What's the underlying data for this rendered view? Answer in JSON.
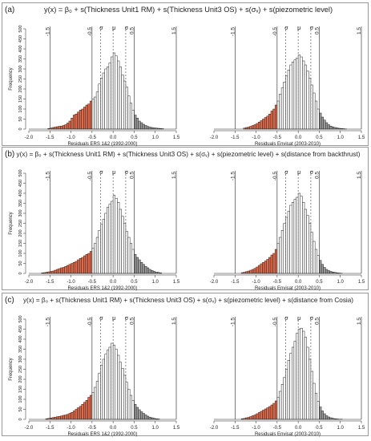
{
  "figure": {
    "panels": [
      {
        "label": "(a)",
        "equation": "y(x) = β₀ + s(Thickness Unit1 RM) + s(Thickness Unit3 OS) + s(σᵥ) + s(piezometric level)"
      },
      {
        "label": "(b)",
        "equation": "y(x) = β₀ + s(Thickness Unit1 RM) + s(Thickness Unit3 OS) + s(σᵥ) + s(piezometric level) + s(distance from backthrust)"
      },
      {
        "label": "(c)",
        "equation": "y(x) = β₀ + s(Thickness Unit1 RM) + s(Thickness Unit3 OS) + s(σᵥ) + s(piezometric level) + s(distance from Cosia)"
      }
    ]
  },
  "colors": {
    "lower_tail": "#e0694a",
    "upper_tail": "#9a9a9a",
    "body": "#ffffff",
    "panel_border": "#999999"
  },
  "chart_data": [
    {
      "type": "bar",
      "panel": "(a)",
      "xlabel": "Residuals ERS 1&2 (1992-2000)",
      "ylabel": "Frequency",
      "xlim": [
        -2.0,
        1.5
      ],
      "ylim": [
        0,
        500
      ],
      "xticks": [
        "-2.0",
        "-1.5",
        "-1.0",
        "-0.5",
        "0.0",
        "0.5",
        "1.0",
        "1.5"
      ],
      "yticks": [
        "0",
        "50",
        "100",
        "150",
        "200",
        "250",
        "300",
        "350",
        "400",
        "450",
        "500"
      ],
      "bin_width": 0.05,
      "bin_start": [
        -1.55,
        -1.5,
        -1.45,
        -1.4,
        -1.35,
        -1.3,
        -1.25,
        -1.2,
        -1.15,
        -1.1,
        -1.05,
        -1.0,
        -0.95,
        -0.9,
        -0.85,
        -0.8,
        -0.75,
        -0.7,
        -0.65,
        -0.6,
        -0.55,
        -0.5,
        -0.45,
        -0.4,
        -0.35,
        -0.3,
        -0.25,
        -0.2,
        -0.15,
        -0.1,
        -0.05,
        0.0,
        0.05,
        0.1,
        0.15,
        0.2,
        0.25,
        0.3,
        0.35,
        0.4,
        0.45,
        0.5,
        0.55,
        0.6,
        0.65,
        0.7,
        0.75,
        0.8,
        0.85,
        0.9,
        0.95,
        1.0,
        1.05,
        1.1,
        1.15
      ],
      "counts": [
        3,
        5,
        8,
        10,
        12,
        14,
        15,
        18,
        22,
        30,
        40,
        55,
        70,
        75,
        85,
        95,
        100,
        110,
        120,
        125,
        140,
        150,
        160,
        185,
        225,
        255,
        280,
        300,
        310,
        330,
        360,
        380,
        365,
        340,
        310,
        270,
        240,
        210,
        165,
        130,
        95,
        70,
        55,
        40,
        32,
        24,
        18,
        13,
        10,
        8,
        6,
        5,
        4,
        3,
        2
      ],
      "vertical_lines": {
        "solid": [
          -1.5,
          -0.5,
          0.5,
          1.5
        ],
        "dashed": [
          -0.3,
          0.0,
          0.3
        ]
      },
      "line_labels": {
        "-1.5": "-1.5",
        "-0.5": "-0.5",
        "-0.3": "σ",
        "0.0": "μ",
        "0.3": "σ",
        "0.5": "0.5",
        "1.5": "1.5"
      },
      "lower_tail_max": -0.5,
      "upper_tail_min": 0.5
    },
    {
      "type": "bar",
      "panel": "(a)",
      "xlabel": "Residuals Envisat (2003-2010)",
      "ylabel": "",
      "xlim": [
        -2.0,
        1.5
      ],
      "ylim": [
        0,
        500
      ],
      "xticks": [
        "-2.0",
        "-1.5",
        "-1.0",
        "-0.5",
        "0.0",
        "0.5",
        "1.0",
        "1.5"
      ],
      "yticks": [],
      "bin_width": 0.05,
      "bin_start": [
        -1.3,
        -1.25,
        -1.2,
        -1.15,
        -1.1,
        -1.05,
        -1.0,
        -0.95,
        -0.9,
        -0.85,
        -0.8,
        -0.75,
        -0.7,
        -0.65,
        -0.6,
        -0.55,
        -0.5,
        -0.45,
        -0.4,
        -0.35,
        -0.3,
        -0.25,
        -0.2,
        -0.15,
        -0.1,
        -0.05,
        0.0,
        0.05,
        0.1,
        0.15,
        0.2,
        0.25,
        0.3,
        0.35,
        0.4,
        0.45,
        0.5,
        0.55,
        0.6,
        0.65,
        0.7,
        0.75,
        0.8,
        0.85,
        0.9,
        0.95,
        1.0,
        1.05,
        1.1
      ],
      "counts": [
        5,
        8,
        10,
        14,
        18,
        22,
        28,
        35,
        42,
        50,
        58,
        65,
        75,
        90,
        100,
        120,
        140,
        175,
        205,
        235,
        265,
        295,
        320,
        335,
        345,
        355,
        370,
        360,
        340,
        320,
        290,
        255,
        220,
        180,
        140,
        100,
        80,
        60,
        45,
        32,
        22,
        15,
        11,
        8,
        6,
        4,
        3,
        2,
        1
      ],
      "vertical_lines": {
        "solid": [
          -1.5,
          -0.5,
          0.5,
          1.5
        ],
        "dashed": [
          -0.3,
          0.0,
          0.3
        ]
      },
      "line_labels": {
        "-1.5": "-1.5",
        "-0.5": "-0.5",
        "-0.3": "σ",
        "0.0": "μ",
        "0.3": "σ",
        "0.5": "0.5",
        "1.5": "1.5"
      },
      "lower_tail_max": -0.5,
      "upper_tail_min": 0.5
    },
    {
      "type": "bar",
      "panel": "(b)",
      "xlabel": "Residuals ERS 1&2 (1992-2000)",
      "ylabel": "Frequency",
      "xlim": [
        -2.0,
        1.5
      ],
      "ylim": [
        0,
        500
      ],
      "xticks": [
        "-2.0",
        "-1.5",
        "-1.0",
        "-0.5",
        "0.0",
        "0.5",
        "1.0",
        "1.5"
      ],
      "yticks": [
        "0",
        "50",
        "100",
        "150",
        "200",
        "250",
        "300",
        "350",
        "400",
        "450",
        "500"
      ],
      "bin_width": 0.05,
      "bin_start": [
        -1.7,
        -1.65,
        -1.6,
        -1.55,
        -1.5,
        -1.45,
        -1.4,
        -1.35,
        -1.3,
        -1.25,
        -1.2,
        -1.15,
        -1.1,
        -1.05,
        -1.0,
        -0.95,
        -0.9,
        -0.85,
        -0.8,
        -0.75,
        -0.7,
        -0.65,
        -0.6,
        -0.55,
        -0.5,
        -0.45,
        -0.4,
        -0.35,
        -0.3,
        -0.25,
        -0.2,
        -0.15,
        -0.1,
        -0.05,
        0.0,
        0.05,
        0.1,
        0.15,
        0.2,
        0.25,
        0.3,
        0.35,
        0.4,
        0.45,
        0.5,
        0.55,
        0.6,
        0.65,
        0.7,
        0.75,
        0.8,
        0.85,
        0.9,
        0.95,
        1.0,
        1.05,
        1.1
      ],
      "counts": [
        3,
        4,
        6,
        8,
        10,
        12,
        16,
        20,
        24,
        28,
        30,
        35,
        40,
        45,
        50,
        55,
        60,
        68,
        75,
        80,
        88,
        95,
        100,
        110,
        125,
        150,
        180,
        215,
        245,
        270,
        300,
        330,
        345,
        360,
        390,
        375,
        355,
        320,
        285,
        250,
        210,
        180,
        150,
        120,
        95,
        80,
        68,
        55,
        45,
        35,
        28,
        20,
        15,
        10,
        7,
        5,
        3
      ],
      "vertical_lines": {
        "solid": [
          -1.5,
          -0.5,
          0.5,
          1.5
        ],
        "dashed": [
          -0.3,
          0.0,
          0.3
        ]
      },
      "line_labels": {
        "-1.5": "-1.5",
        "-0.5": "-0.5",
        "-0.3": "σ",
        "0.0": "μ",
        "0.3": "σ",
        "0.5": "0.5",
        "1.5": "1.5"
      },
      "lower_tail_max": -0.5,
      "upper_tail_min": 0.5
    },
    {
      "type": "bar",
      "panel": "(b)",
      "xlabel": "Residuals Envisat (2003-2010)",
      "ylabel": "",
      "xlim": [
        -2.0,
        1.5
      ],
      "ylim": [
        0,
        500
      ],
      "xticks": [
        "-2.0",
        "-1.5",
        "-1.0",
        "-0.5",
        "0.0",
        "0.5",
        "1.0",
        "1.5"
      ],
      "yticks": [],
      "bin_width": 0.05,
      "bin_start": [
        -1.35,
        -1.3,
        -1.25,
        -1.2,
        -1.15,
        -1.1,
        -1.05,
        -1.0,
        -0.95,
        -0.9,
        -0.85,
        -0.8,
        -0.75,
        -0.7,
        -0.65,
        -0.6,
        -0.55,
        -0.5,
        -0.45,
        -0.4,
        -0.35,
        -0.3,
        -0.25,
        -0.2,
        -0.15,
        -0.1,
        -0.05,
        0.0,
        0.05,
        0.1,
        0.15,
        0.2,
        0.25,
        0.3,
        0.35,
        0.4,
        0.45,
        0.5,
        0.55,
        0.6,
        0.65,
        0.7,
        0.75,
        0.8,
        0.85,
        0.9,
        0.95,
        1.0
      ],
      "counts": [
        4,
        6,
        9,
        12,
        16,
        20,
        25,
        32,
        40,
        48,
        55,
        62,
        70,
        80,
        92,
        100,
        120,
        150,
        180,
        215,
        250,
        280,
        310,
        340,
        355,
        370,
        380,
        400,
        385,
        355,
        320,
        290,
        250,
        205,
        160,
        120,
        90,
        65,
        45,
        30,
        20,
        14,
        10,
        7,
        5,
        3,
        2,
        1
      ],
      "vertical_lines": {
        "solid": [
          -1.5,
          -0.5,
          0.5,
          1.5
        ],
        "dashed": [
          -0.3,
          0.0,
          0.3
        ]
      },
      "line_labels": {
        "-1.5": "-1.5",
        "-0.5": "-0.5",
        "-0.3": "σ",
        "0.0": "μ",
        "0.3": "σ",
        "0.5": "0.5",
        "1.5": "1.5"
      },
      "lower_tail_max": -0.5,
      "upper_tail_min": 0.5
    },
    {
      "type": "bar",
      "panel": "(c)",
      "xlabel": "Residuals ERS 1&2 (1992-2000)",
      "ylabel": "Frequency",
      "xlim": [
        -2.0,
        1.5
      ],
      "ylim": [
        0,
        500
      ],
      "xticks": [
        "-2.0",
        "-1.5",
        "-1.0",
        "-0.5",
        "0.0",
        "0.5",
        "1.0",
        "1.5"
      ],
      "yticks": [
        "0",
        "50",
        "100",
        "150",
        "200",
        "250",
        "300",
        "350",
        "400",
        "450",
        "500"
      ],
      "bin_width": 0.05,
      "bin_start": [
        -1.6,
        -1.55,
        -1.5,
        -1.45,
        -1.4,
        -1.35,
        -1.3,
        -1.25,
        -1.2,
        -1.15,
        -1.1,
        -1.05,
        -1.0,
        -0.95,
        -0.9,
        -0.85,
        -0.8,
        -0.75,
        -0.7,
        -0.65,
        -0.6,
        -0.55,
        -0.5,
        -0.45,
        -0.4,
        -0.35,
        -0.3,
        -0.25,
        -0.2,
        -0.15,
        -0.1,
        -0.05,
        0.0,
        0.05,
        0.1,
        0.15,
        0.2,
        0.25,
        0.3,
        0.35,
        0.4,
        0.45,
        0.5,
        0.55,
        0.6,
        0.65,
        0.7,
        0.75,
        0.8,
        0.85,
        0.9,
        0.95,
        1.0,
        1.05
      ],
      "counts": [
        3,
        5,
        7,
        9,
        11,
        13,
        15,
        17,
        20,
        22,
        25,
        30,
        35,
        42,
        50,
        58,
        65,
        75,
        85,
        95,
        110,
        120,
        135,
        160,
        190,
        230,
        270,
        300,
        325,
        345,
        360,
        380,
        370,
        350,
        320,
        285,
        255,
        220,
        185,
        150,
        120,
        95,
        75,
        60,
        48,
        38,
        30,
        22,
        16,
        11,
        8,
        5,
        3,
        2
      ],
      "vertical_lines": {
        "solid": [
          -1.5,
          -0.5,
          0.5,
          1.5
        ],
        "dashed": [
          -0.3,
          0.0,
          0.3
        ]
      },
      "line_labels": {
        "-1.5": "-1.5",
        "-0.5": "-0.5",
        "-0.3": "σ",
        "0.0": "μ",
        "0.3": "σ",
        "0.5": "0.5",
        "1.5": "1.5"
      },
      "lower_tail_max": -0.5,
      "upper_tail_min": 0.5
    },
    {
      "type": "bar",
      "panel": "(c)",
      "xlabel": "Residuals Envisat (2003-2010)",
      "ylabel": "",
      "xlim": [
        -2.0,
        1.5
      ],
      "ylim": [
        0,
        500
      ],
      "xticks": [
        "-2.0",
        "-1.5",
        "-1.0",
        "-0.5",
        "0.0",
        "0.5",
        "1.0",
        "1.5"
      ],
      "yticks": [],
      "bin_width": 0.05,
      "bin_start": [
        -1.35,
        -1.3,
        -1.25,
        -1.2,
        -1.15,
        -1.1,
        -1.05,
        -1.0,
        -0.95,
        -0.9,
        -0.85,
        -0.8,
        -0.75,
        -0.7,
        -0.65,
        -0.6,
        -0.55,
        -0.5,
        -0.45,
        -0.4,
        -0.35,
        -0.3,
        -0.25,
        -0.2,
        -0.15,
        -0.1,
        -0.05,
        0.0,
        0.05,
        0.1,
        0.15,
        0.2,
        0.25,
        0.3,
        0.35,
        0.4,
        0.45,
        0.5,
        0.55,
        0.6,
        0.65,
        0.7,
        0.75,
        0.8,
        0.85,
        0.9,
        0.95,
        1.0
      ],
      "counts": [
        3,
        5,
        8,
        10,
        14,
        18,
        22,
        28,
        34,
        40,
        46,
        52,
        58,
        64,
        72,
        80,
        92,
        110,
        140,
        175,
        210,
        250,
        295,
        330,
        360,
        390,
        430,
        450,
        455,
        440,
        410,
        360,
        300,
        240,
        180,
        130,
        90,
        62,
        42,
        28,
        18,
        12,
        8,
        5,
        3,
        2,
        1,
        1
      ],
      "vertical_lines": {
        "solid": [
          -1.5,
          -0.5,
          0.5,
          1.5
        ],
        "dashed": [
          -0.3,
          0.0,
          0.3
        ]
      },
      "line_labels": {
        "-1.5": "-1.5",
        "-0.5": "-0.5",
        "-0.3": "σ",
        "0.0": "μ",
        "0.3": "σ",
        "0.5": "0.5",
        "1.5": "1.5"
      },
      "lower_tail_max": -0.5,
      "upper_tail_min": 0.5
    }
  ]
}
